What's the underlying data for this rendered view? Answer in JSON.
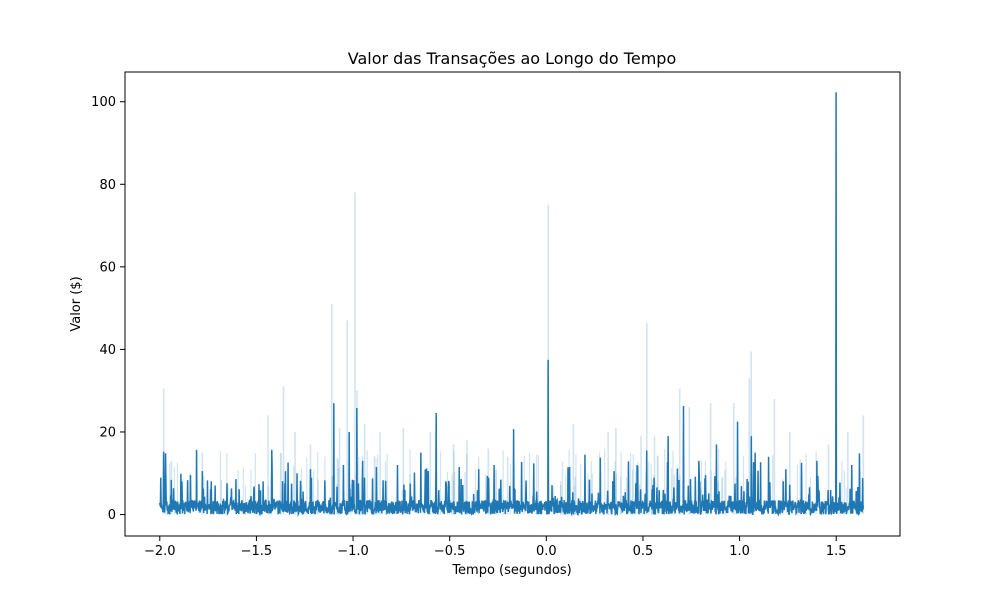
{
  "chart_data": {
    "type": "line",
    "title": "Valor das Transações ao Longo do Tempo",
    "xlabel": "Tempo (segundos)",
    "ylabel": "Valor ($)",
    "xlim": [
      -2.18,
      1.83
    ],
    "ylim": [
      -5.2,
      107.2
    ],
    "xticks": [
      -2.0,
      -1.5,
      -1.0,
      -0.5,
      0.0,
      0.5,
      1.0,
      1.5
    ],
    "xtick_labels": [
      "−2.0",
      "−1.5",
      "−1.0",
      "−0.5",
      "0.0",
      "0.5",
      "1.0",
      "1.5"
    ],
    "yticks": [
      0,
      20,
      40,
      60,
      80,
      100
    ],
    "ytick_labels": [
      "0",
      "20",
      "40",
      "60",
      "80",
      "100"
    ],
    "grid": false,
    "series": [
      {
        "color": "#1f77b4",
        "x_range": [
          -2.0,
          1.64
        ],
        "baseline_max": 3.5,
        "peaks": [
          {
            "x": -1.98,
            "y": 15.2
          },
          {
            "x": -1.97,
            "y": 14.8
          },
          {
            "x": -1.81,
            "y": 15.7
          },
          {
            "x": -1.78,
            "y": 10.5
          },
          {
            "x": -1.42,
            "y": 15.7
          },
          {
            "x": -1.35,
            "y": 10.5
          },
          {
            "x": -1.29,
            "y": 10.0
          },
          {
            "x": -1.22,
            "y": 11.0
          },
          {
            "x": -1.1,
            "y": 27.0
          },
          {
            "x": -1.05,
            "y": 12.0
          },
          {
            "x": -1.02,
            "y": 20.0
          },
          {
            "x": -0.98,
            "y": 25.8
          },
          {
            "x": -0.95,
            "y": 13.0
          },
          {
            "x": -0.88,
            "y": 11.5
          },
          {
            "x": -0.77,
            "y": 12.0
          },
          {
            "x": -0.65,
            "y": 15.0
          },
          {
            "x": -0.57,
            "y": 24.6
          },
          {
            "x": -0.45,
            "y": 11.5
          },
          {
            "x": -0.35,
            "y": 11.0
          },
          {
            "x": -0.27,
            "y": 12.0
          },
          {
            "x": -0.17,
            "y": 20.7
          },
          {
            "x": 0.01,
            "y": 37.5
          },
          {
            "x": 0.12,
            "y": 11.5
          },
          {
            "x": 0.2,
            "y": 14.5
          },
          {
            "x": 0.28,
            "y": 13.8
          },
          {
            "x": 0.35,
            "y": 10.5
          },
          {
            "x": 0.47,
            "y": 12.0
          },
          {
            "x": 0.52,
            "y": 15.5
          },
          {
            "x": 0.63,
            "y": 19.0
          },
          {
            "x": 0.71,
            "y": 26.3
          },
          {
            "x": 0.79,
            "y": 13.0
          },
          {
            "x": 0.88,
            "y": 17.0
          },
          {
            "x": 0.99,
            "y": 22.5
          },
          {
            "x": 1.06,
            "y": 19.0
          },
          {
            "x": 1.08,
            "y": 15.0
          },
          {
            "x": 1.15,
            "y": 14.0
          },
          {
            "x": 1.24,
            "y": 11.0
          },
          {
            "x": 1.32,
            "y": 12.5
          },
          {
            "x": 1.4,
            "y": 13.0
          },
          {
            "x": 1.5,
            "y": 102.3
          },
          {
            "x": 1.58,
            "y": 12.0
          },
          {
            "x": 1.62,
            "y": 14.8
          }
        ]
      },
      {
        "color": "#1f77b4",
        "opacity": 0.2,
        "peaks": [
          {
            "x": -1.98,
            "y": 30.5
          },
          {
            "x": -1.94,
            "y": 13.0
          },
          {
            "x": -1.78,
            "y": 15.0
          },
          {
            "x": -1.44,
            "y": 24.0
          },
          {
            "x": -1.36,
            "y": 31.0
          },
          {
            "x": -1.3,
            "y": 20.0
          },
          {
            "x": -1.22,
            "y": 17.0
          },
          {
            "x": -1.11,
            "y": 51.0
          },
          {
            "x": -1.07,
            "y": 21.0
          },
          {
            "x": -1.03,
            "y": 47.0
          },
          {
            "x": -0.99,
            "y": 78.0
          },
          {
            "x": -0.98,
            "y": 30.0
          },
          {
            "x": -0.94,
            "y": 22.0
          },
          {
            "x": -0.86,
            "y": 20.0
          },
          {
            "x": -0.74,
            "y": 21.0
          },
          {
            "x": -0.6,
            "y": 20.0
          },
          {
            "x": -0.48,
            "y": 17.0
          },
          {
            "x": -0.41,
            "y": 18.0
          },
          {
            "x": -0.3,
            "y": 16.0
          },
          {
            "x": -0.2,
            "y": 14.0
          },
          {
            "x": 0.01,
            "y": 75.0
          },
          {
            "x": 0.14,
            "y": 22.0
          },
          {
            "x": 0.32,
            "y": 20.0
          },
          {
            "x": 0.36,
            "y": 21.0
          },
          {
            "x": 0.49,
            "y": 19.0
          },
          {
            "x": 0.52,
            "y": 46.5
          },
          {
            "x": 0.56,
            "y": 19.0
          },
          {
            "x": 0.69,
            "y": 30.5
          },
          {
            "x": 0.74,
            "y": 26.0
          },
          {
            "x": 0.85,
            "y": 27.0
          },
          {
            "x": 0.97,
            "y": 27.0
          },
          {
            "x": 1.06,
            "y": 39.5
          },
          {
            "x": 1.05,
            "y": 33.0
          },
          {
            "x": 1.18,
            "y": 28.0
          },
          {
            "x": 1.26,
            "y": 20.0
          },
          {
            "x": 1.46,
            "y": 17.0
          },
          {
            "x": 1.56,
            "y": 20.0
          },
          {
            "x": 1.64,
            "y": 24.0
          }
        ]
      }
    ]
  }
}
